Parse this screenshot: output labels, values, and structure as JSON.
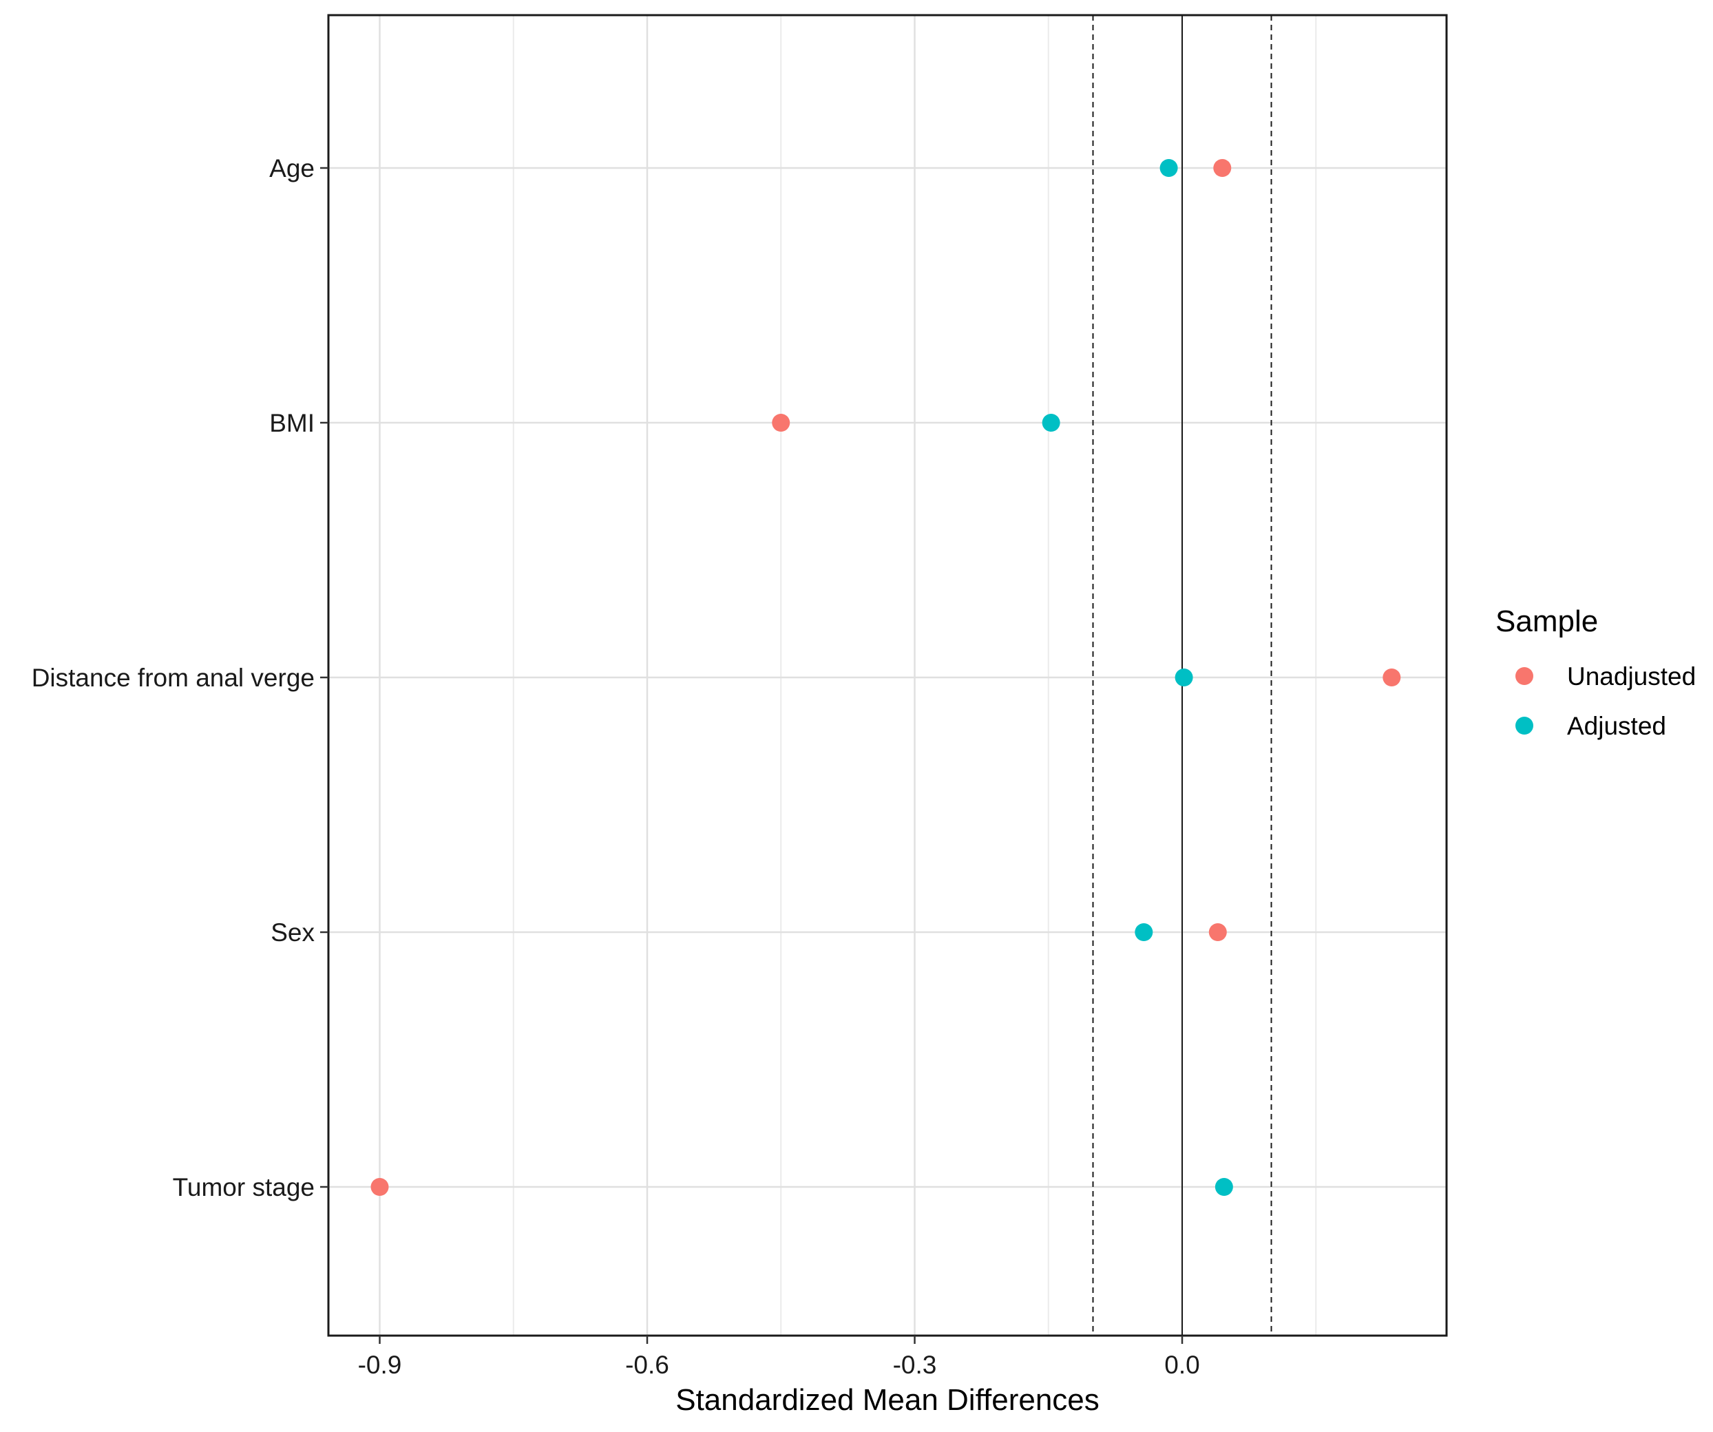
{
  "chart_data": {
    "type": "scatter",
    "title": "",
    "xlabel": "Standardized Mean Differences",
    "ylabel": "",
    "xlim": [
      -0.945,
      0.305
    ],
    "xticks": [
      -0.9,
      -0.6,
      -0.3,
      0.0
    ],
    "xtick_labels": [
      "-0.9",
      "-0.6",
      "-0.3",
      "0.0"
    ],
    "x_minor_gridlines": [
      -0.75,
      -0.45,
      -0.15,
      0.15
    ],
    "reference_lines": [
      {
        "x": 0.0,
        "style": "solid"
      },
      {
        "x": -0.1,
        "style": "dashed"
      },
      {
        "x": 0.1,
        "style": "dashed"
      }
    ],
    "categories": [
      "Age",
      "BMI",
      "Distance from anal verge",
      "Sex",
      "Tumor stage"
    ],
    "series": [
      {
        "name": "Unadjusted",
        "color": "#F8766D",
        "values": [
          0.045,
          -0.45,
          0.235,
          0.04,
          -0.9
        ]
      },
      {
        "name": "Adjusted",
        "color": "#00BFC4",
        "values": [
          -0.015,
          -0.147,
          0.002,
          -0.043,
          0.047
        ]
      }
    ],
    "legend": {
      "title": "Sample",
      "position": "right"
    },
    "grid": true
  }
}
